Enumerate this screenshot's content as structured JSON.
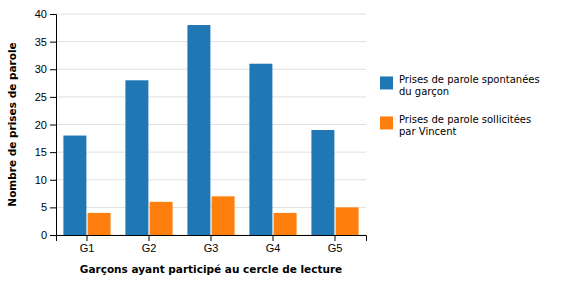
{
  "chart_data": {
    "type": "bar",
    "categories": [
      "G1",
      "G2",
      "G3",
      "G4",
      "G5"
    ],
    "series": [
      {
        "name": "Prises de parole spontanées\ndu garçon",
        "values": [
          18,
          28,
          38,
          31,
          19
        ]
      },
      {
        "name": "Prises de parole sollicitées\npar Vincent",
        "values": [
          4,
          6,
          7,
          4,
          5
        ]
      }
    ],
    "xlabel": "Garçons ayant participé au cercle de lecture",
    "ylabel": "Nombre de prises de parole",
    "ylim": [
      0,
      40
    ],
    "yticks": [
      0,
      5,
      10,
      15,
      20,
      25,
      30,
      35,
      40
    ],
    "grid": true,
    "legend": "right"
  }
}
